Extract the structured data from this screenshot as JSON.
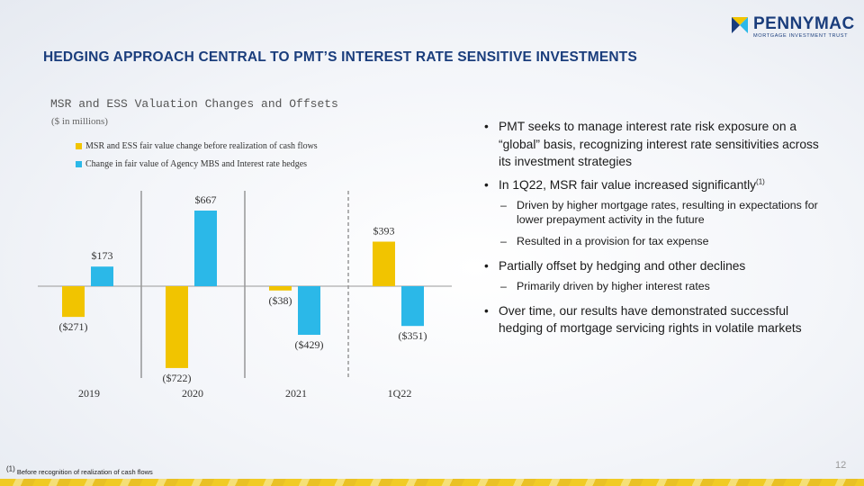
{
  "logo": {
    "name": "PENNYMAC",
    "tagline": "MORTGAGE INVESTMENT TRUST",
    "icon": "pennymac-logo-icon"
  },
  "title": "HEDGING APPROACH CENTRAL TO PMT’S INTEREST RATE SENSITIVE INVESTMENTS",
  "chart_data": {
    "type": "bar",
    "title": "MSR and ESS Valuation Changes and Offsets",
    "subtitle": "($ in millions)",
    "categories": [
      "2019",
      "2020",
      "2021",
      "1Q22"
    ],
    "series": [
      {
        "name": "MSR and ESS fair value change before realization of cash flows",
        "color": "#f1c400",
        "values": [
          -271,
          -722,
          -38,
          393
        ],
        "labels": [
          "($271)",
          "($722)",
          "($38)",
          "$393"
        ]
      },
      {
        "name": "Change in fair value of Agency MBS and Interest rate hedges",
        "color": "#2bb8e8",
        "values": [
          173,
          667,
          -429,
          -351
        ],
        "labels": [
          "$173",
          "$667",
          "($429)",
          "($351)"
        ]
      }
    ],
    "ylim": [
      -722,
      667
    ],
    "grid": false,
    "legend": "top-left"
  },
  "bullets": [
    {
      "level": 1,
      "text": "PMT seeks to manage interest rate risk exposure on a “global” basis, recognizing interest rate sensitivities across its investment strategies",
      "sup": ""
    },
    {
      "level": 1,
      "text": "In 1Q22, MSR fair value increased significantly",
      "sup": "(1)"
    },
    {
      "level": 2,
      "text": "Driven by higher mortgage rates, resulting in expectations for lower prepayment activity in the future",
      "sup": ""
    },
    {
      "level": 2,
      "text": "Resulted in a provision for tax expense",
      "sup": ""
    },
    {
      "level": 1,
      "text": "Partially offset by hedging and other declines",
      "sup": ""
    },
    {
      "level": 2,
      "text": "Primarily driven by higher interest rates",
      "sup": ""
    },
    {
      "level": 1,
      "text": "Over time, our results have demonstrated successful hedging of mortgage servicing rights in volatile markets",
      "sup": ""
    }
  ],
  "footnote": {
    "mark": "(1)",
    "text": " Before recognition of realization of cash flows"
  },
  "page_number": "12"
}
